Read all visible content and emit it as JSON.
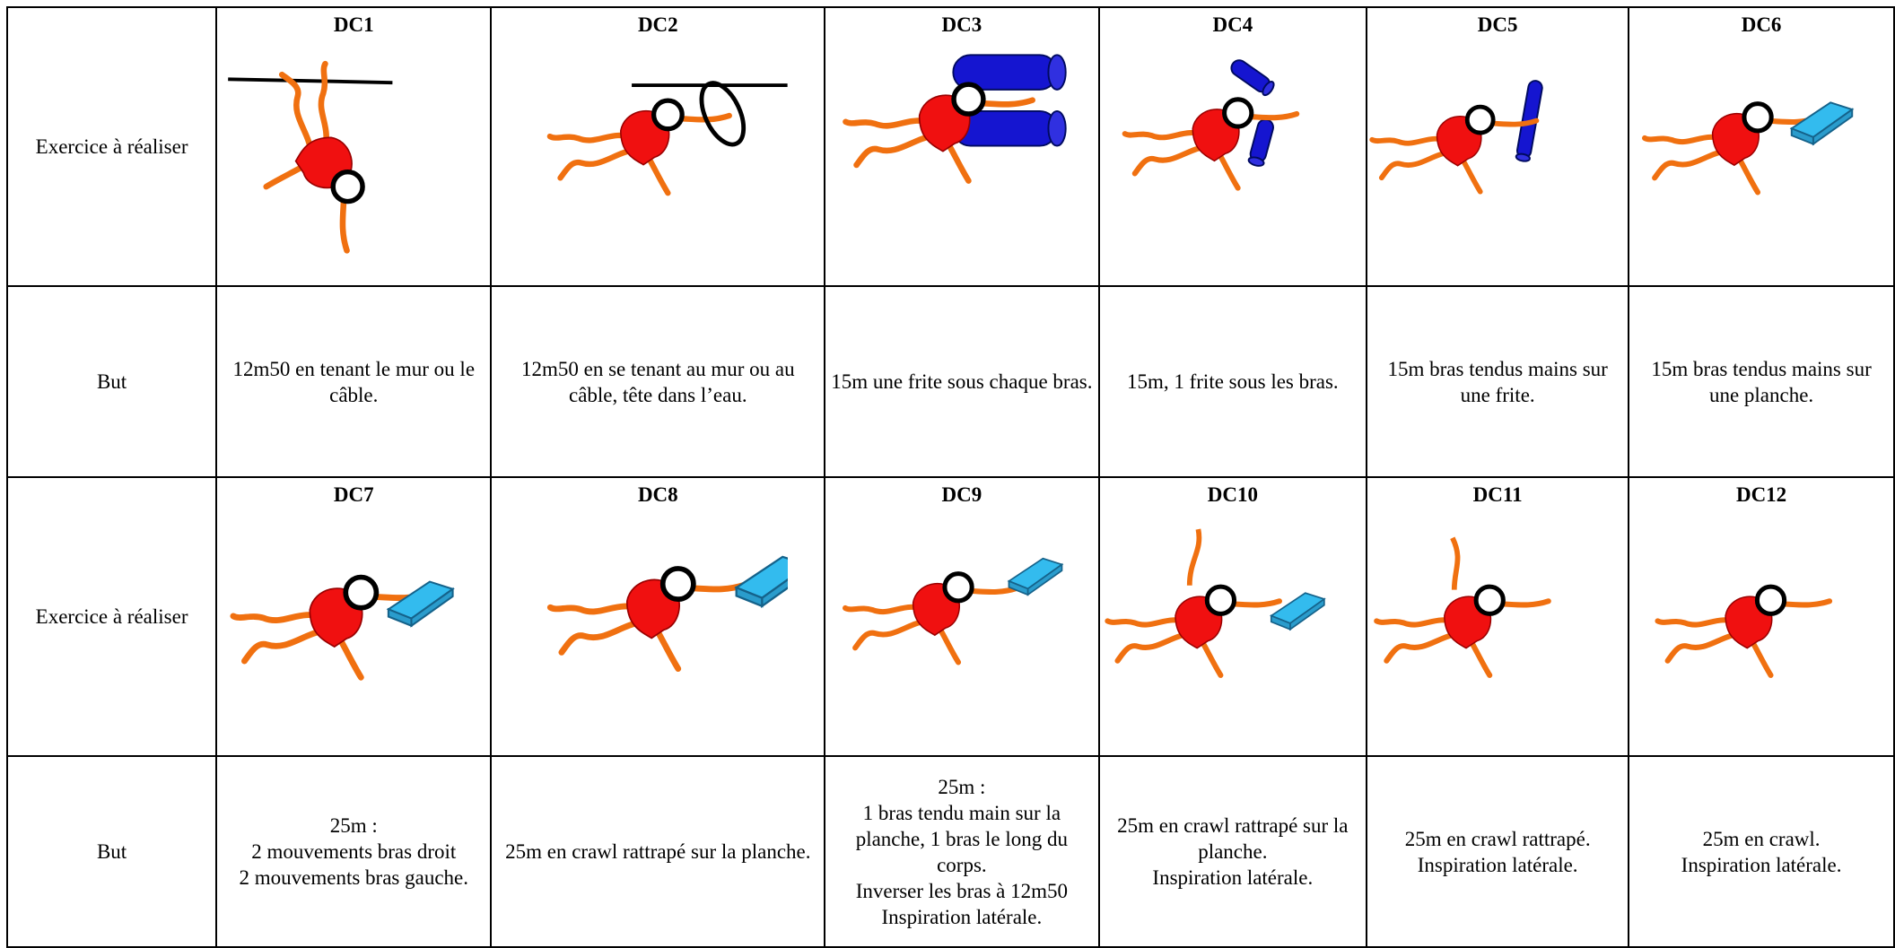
{
  "table": {
    "rows": [
      {
        "label": "Exercice à réaliser",
        "cells": [
          "DC1",
          "DC2",
          "DC3",
          "DC4",
          "DC5",
          "DC6"
        ]
      },
      {
        "label": "But",
        "cells": [
          [
            "12m50 en tenant le mur ou le câble."
          ],
          [
            "12m50 en se tenant au mur ou au câble, tête dans l’eau."
          ],
          [
            "15m une frite sous chaque bras."
          ],
          [
            "15m, 1 frite sous les bras."
          ],
          [
            "15m bras tendus mains sur une frite."
          ],
          [
            "15m bras tendus mains sur une planche."
          ]
        ]
      },
      {
        "label": "Exercice à réaliser",
        "cells": [
          "DC7",
          "DC8",
          "DC9",
          "DC10",
          "DC11",
          "DC12"
        ]
      },
      {
        "label": "But",
        "cells": [
          [
            "25m :",
            "2 mouvements bras droit",
            "2 mouvements bras gauche."
          ],
          [
            "25m en crawl rattrapé sur la planche."
          ],
          [
            "25m :",
            "1 bras tendu main sur la planche, 1 bras le long du corps.",
            "Inverser les bras à 12m50",
            "Inspiration latérale."
          ],
          [
            "25m en crawl rattrapé sur la planche.",
            "Inspiration latérale."
          ],
          [
            "25m en crawl rattrapé.",
            "Inspiration latérale."
          ],
          [
            "25m en crawl.",
            "Inspiration latérale."
          ]
        ]
      }
    ]
  }
}
